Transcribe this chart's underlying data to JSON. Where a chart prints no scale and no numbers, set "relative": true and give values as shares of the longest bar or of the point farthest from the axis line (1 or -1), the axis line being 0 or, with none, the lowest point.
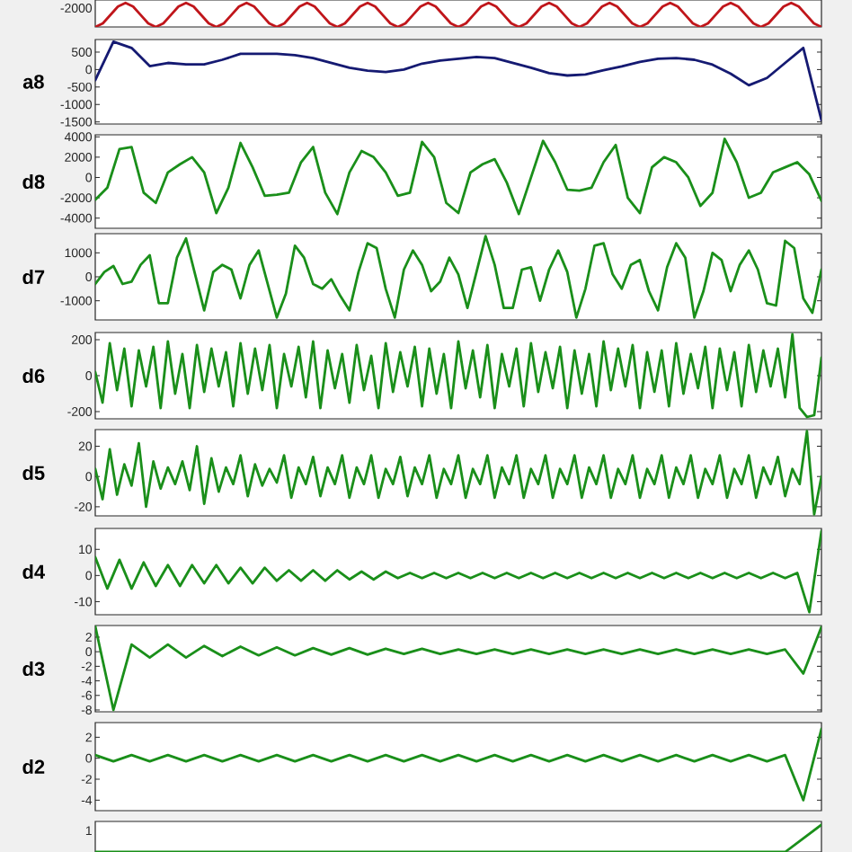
{
  "chart_data": [
    {
      "type": "line",
      "relative": true,
      "tick_labels": "y",
      "color": "#c0161b",
      "annotations": [
        "-2000"
      ],
      "categories": [
        null,
        null,
        null,
        null,
        null,
        null,
        null,
        null,
        null,
        null,
        null,
        null,
        null,
        null,
        null,
        null,
        null,
        null,
        null,
        null,
        null,
        null,
        null,
        null,
        null,
        null,
        null,
        null,
        null,
        null,
        null,
        null,
        null,
        null,
        null,
        null,
        null,
        null,
        null,
        null,
        null,
        null,
        null,
        null,
        null,
        null,
        null,
        null,
        null,
        null,
        null,
        null,
        null,
        null,
        null,
        null,
        null,
        null,
        null,
        null,
        null,
        null,
        null,
        null,
        null,
        null,
        null,
        null,
        null,
        null,
        null,
        null,
        null,
        null,
        null,
        null,
        null,
        null,
        null,
        null,
        null,
        null,
        null,
        null,
        null,
        null,
        null,
        null,
        null,
        null,
        null,
        null,
        null,
        null,
        null,
        null,
        null
      ],
      "values": [
        0,
        0.15,
        0.5,
        0.85,
        1,
        0.85,
        0.5,
        0.15,
        0,
        0.15,
        0.5,
        0.85,
        1,
        0.85,
        0.5,
        0.15,
        0,
        0.15,
        0.5,
        0.85,
        1,
        0.85,
        0.5,
        0.15,
        0,
        0.15,
        0.5,
        0.85,
        1,
        0.85,
        0.5,
        0.15,
        0,
        0.15,
        0.5,
        0.85,
        1,
        0.85,
        0.5,
        0.15,
        0,
        0.15,
        0.5,
        0.85,
        1,
        0.85,
        0.5,
        0.15,
        0,
        0.15,
        0.5,
        0.85,
        1,
        0.85,
        0.5,
        0.15,
        0,
        0.15,
        0.5,
        0.85,
        1,
        0.85,
        0.5,
        0.15,
        0,
        0.15,
        0.5,
        0.85,
        1,
        0.85,
        0.5,
        0.15,
        0,
        0.15,
        0.5,
        0.85,
        1,
        0.85,
        0.5,
        0.15,
        0,
        0.15,
        0.5,
        0.85,
        1,
        0.85,
        0.5,
        0.15,
        0,
        0.15,
        0.5,
        0.85,
        1,
        0.85,
        0.5,
        0.15,
        0
      ]
    },
    {
      "type": "line",
      "tick_labels": "y",
      "ylabel": "a8",
      "color": "#151a72",
      "ylim": [
        -1560,
        860
      ],
      "yticks": [
        -1500,
        -1000,
        -500,
        0,
        500
      ],
      "categories": [
        null,
        null,
        null,
        null,
        null,
        null,
        null,
        null,
        null,
        null,
        null,
        null,
        null,
        null,
        null,
        null,
        null,
        null,
        null,
        null,
        null,
        null,
        null,
        null,
        null,
        null,
        null,
        null,
        null,
        null,
        null,
        null,
        null,
        null,
        null,
        null,
        null,
        null,
        null,
        null,
        null
      ],
      "values": [
        -300,
        800,
        620,
        100,
        190,
        150,
        150,
        280,
        450,
        450,
        450,
        410,
        330,
        190,
        50,
        -30,
        -70,
        0,
        170,
        260,
        310,
        360,
        330,
        190,
        50,
        -100,
        -170,
        -140,
        -20,
        90,
        220,
        310,
        330,
        280,
        140,
        -120,
        -450,
        -240,
        190,
        620,
        -1450
      ]
    },
    {
      "type": "line",
      "tick_labels": "y",
      "ylabel": "d8",
      "color": "#1a8f1a",
      "ylim": [
        -5000,
        4200
      ],
      "yticks": [
        -4000,
        -2000,
        0,
        2000,
        4000
      ],
      "categories": [
        null,
        null,
        null,
        null,
        null,
        null,
        null,
        null,
        null,
        null,
        null,
        null,
        null,
        null,
        null,
        null,
        null,
        null,
        null,
        null,
        null,
        null,
        null,
        null,
        null,
        null,
        null,
        null,
        null,
        null,
        null,
        null,
        null,
        null,
        null,
        null,
        null,
        null,
        null,
        null,
        null,
        null,
        null,
        null,
        null,
        null,
        null,
        null,
        null,
        null,
        null,
        null,
        null,
        null,
        null,
        null,
        null,
        null,
        null,
        null,
        null
      ],
      "values": [
        -2200,
        -1000,
        2800,
        3000,
        -1500,
        -2500,
        500,
        1300,
        2000,
        500,
        -3500,
        -1000,
        3400,
        1000,
        -1800,
        -1700,
        -1500,
        1500,
        3000,
        -1500,
        -3600,
        500,
        2600,
        2000,
        500,
        -1800,
        -1500,
        3500,
        2000,
        -2500,
        -3500,
        500,
        1300,
        1800,
        -500,
        -3600,
        0,
        3600,
        1500,
        -1200,
        -1300,
        -1000,
        1500,
        3200,
        -2000,
        -3500,
        1000,
        2000,
        1500,
        0,
        -2800,
        -1500,
        3800,
        1500,
        -2000,
        -1500,
        500,
        1000,
        1500,
        300,
        -2300
      ]
    },
    {
      "type": "line",
      "tick_labels": "y",
      "ylabel": "d7",
      "color": "#1a8f1a",
      "ylim": [
        -1800,
        1800
      ],
      "yticks": [
        -1000,
        0,
        1000
      ],
      "categories": [
        null,
        null,
        null,
        null,
        null,
        null,
        null,
        null,
        null,
        null,
        null,
        null,
        null,
        null,
        null,
        null,
        null,
        null,
        null,
        null,
        null,
        null,
        null,
        null,
        null,
        null,
        null,
        null,
        null,
        null,
        null,
        null,
        null,
        null,
        null,
        null,
        null,
        null,
        null,
        null,
        null,
        null,
        null,
        null,
        null,
        null,
        null,
        null,
        null,
        null,
        null,
        null,
        null,
        null,
        null,
        null,
        null,
        null,
        null,
        null,
        null,
        null,
        null,
        null,
        null,
        null,
        null,
        null,
        null,
        null,
        null,
        null,
        null,
        null,
        null,
        null,
        null,
        null,
        null,
        null,
        null
      ],
      "values": [
        -300,
        200,
        450,
        -300,
        -200,
        500,
        900,
        -1100,
        -1100,
        800,
        1600,
        100,
        -1400,
        200,
        500,
        300,
        -900,
        500,
        1100,
        -300,
        -1700,
        -700,
        1300,
        800,
        -300,
        -500,
        -100,
        -800,
        -1400,
        200,
        1400,
        1200,
        -500,
        -1700,
        300,
        1100,
        500,
        -600,
        -200,
        800,
        100,
        -1300,
        200,
        1700,
        500,
        -1300,
        -1300,
        300,
        400,
        -1000,
        300,
        1100,
        200,
        -1700,
        -500,
        1300,
        1400,
        100,
        -500,
        500,
        700,
        -600,
        -1400,
        400,
        1400,
        800,
        -1700,
        -600,
        1000,
        700,
        -600,
        500,
        1100,
        300,
        -1100,
        -1200,
        1500,
        1200,
        -900,
        -1500,
        300
      ]
    },
    {
      "type": "line",
      "tick_labels": "y",
      "ylabel": "d6",
      "color": "#1a8f1a",
      "ylim": [
        -240,
        240
      ],
      "yticks": [
        -200,
        0,
        200
      ],
      "categories": [
        null,
        null,
        null,
        null,
        null,
        null,
        null,
        null,
        null,
        null,
        null,
        null,
        null,
        null,
        null,
        null,
        null,
        null,
        null,
        null,
        null,
        null,
        null,
        null,
        null,
        null,
        null,
        null,
        null,
        null,
        null,
        null,
        null,
        null,
        null,
        null,
        null,
        null,
        null,
        null,
        null,
        null,
        null,
        null,
        null,
        null,
        null,
        null,
        null,
        null,
        null,
        null,
        null,
        null,
        null,
        null,
        null,
        null,
        null,
        null,
        null,
        null,
        null,
        null,
        null,
        null,
        null,
        null,
        null,
        null,
        null,
        null,
        null,
        null,
        null,
        null,
        null,
        null,
        null,
        null,
        null,
        null,
        null,
        null,
        null,
        null,
        null,
        null,
        null,
        null,
        null,
        null,
        null,
        null,
        null,
        null,
        null,
        null,
        null,
        null,
        null
      ],
      "values": [
        20,
        -150,
        180,
        -80,
        150,
        -170,
        140,
        -60,
        160,
        -180,
        190,
        -100,
        120,
        -180,
        170,
        -90,
        150,
        -60,
        130,
        -170,
        180,
        -100,
        150,
        -80,
        170,
        -180,
        120,
        -60,
        160,
        -120,
        190,
        -180,
        140,
        -70,
        120,
        -150,
        170,
        -80,
        110,
        -180,
        180,
        -90,
        130,
        -60,
        160,
        -170,
        150,
        -100,
        120,
        -180,
        190,
        -70,
        140,
        -120,
        170,
        -180,
        120,
        -60,
        150,
        -170,
        180,
        -90,
        130,
        -70,
        160,
        -180,
        140,
        -100,
        120,
        -170,
        190,
        -80,
        150,
        -60,
        170,
        -180,
        130,
        -90,
        140,
        -170,
        180,
        -100,
        120,
        -70,
        160,
        -180,
        150,
        -80,
        130,
        -170,
        170,
        -90,
        140,
        -60,
        150,
        -120,
        230,
        -180,
        -230,
        -220,
        100
      ]
    },
    {
      "type": "line",
      "tick_labels": "y",
      "ylabel": "d5",
      "color": "#1a8f1a",
      "ylim": [
        -26,
        31
      ],
      "yticks": [
        -20,
        0,
        20
      ],
      "categories": [
        null,
        null,
        null,
        null,
        null,
        null,
        null,
        null,
        null,
        null,
        null,
        null,
        null,
        null,
        null,
        null,
        null,
        null,
        null,
        null,
        null,
        null,
        null,
        null,
        null,
        null,
        null,
        null,
        null,
        null,
        null,
        null,
        null,
        null,
        null,
        null,
        null,
        null,
        null,
        null,
        null,
        null,
        null,
        null,
        null,
        null,
        null,
        null,
        null,
        null,
        null,
        null,
        null,
        null,
        null,
        null,
        null,
        null,
        null,
        null,
        null,
        null,
        null,
        null,
        null,
        null,
        null,
        null,
        null,
        null,
        null,
        null,
        null,
        null,
        null,
        null,
        null,
        null,
        null,
        null,
        null,
        null,
        null,
        null,
        null,
        null,
        null,
        null,
        null,
        null,
        null,
        null,
        null,
        null,
        null,
        null,
        null,
        null,
        null,
        null,
        null
      ],
      "values": [
        5,
        -15,
        18,
        -12,
        8,
        -6,
        22,
        -20,
        10,
        -8,
        6,
        -5,
        10,
        -9,
        20,
        -18,
        12,
        -10,
        6,
        -5,
        14,
        -13,
        8,
        -6,
        5,
        -4,
        14,
        -14,
        6,
        -5,
        13,
        -13,
        6,
        -5,
        14,
        -14,
        6,
        -5,
        14,
        -14,
        5,
        -5,
        13,
        -13,
        6,
        -5,
        14,
        -14,
        5,
        -5,
        14,
        -14,
        5,
        -5,
        14,
        -14,
        6,
        -5,
        14,
        -14,
        5,
        -5,
        14,
        -14,
        5,
        -5,
        14,
        -14,
        6,
        -5,
        14,
        -14,
        5,
        -5,
        14,
        -14,
        5,
        -5,
        14,
        -14,
        6,
        -5,
        14,
        -14,
        5,
        -5,
        14,
        -14,
        5,
        -5,
        14,
        -14,
        6,
        -5,
        13,
        -13,
        5,
        -5,
        30,
        -25,
        0
      ]
    },
    {
      "type": "line",
      "tick_labels": "y",
      "ylabel": "d4",
      "color": "#1a8f1a",
      "ylim": [
        -15,
        18
      ],
      "yticks": [
        -10,
        0,
        10
      ],
      "categories": [
        null,
        null,
        null,
        null,
        null,
        null,
        null,
        null,
        null,
        null,
        null,
        null,
        null,
        null,
        null,
        null,
        null,
        null,
        null,
        null,
        null,
        null,
        null,
        null,
        null,
        null,
        null,
        null,
        null,
        null,
        null,
        null,
        null,
        null,
        null,
        null,
        null,
        null,
        null,
        null,
        null,
        null,
        null,
        null,
        null,
        null,
        null,
        null,
        null,
        null,
        null,
        null,
        null,
        null,
        null,
        null,
        null,
        null,
        null,
        null,
        null
      ],
      "values": [
        7,
        -5,
        6,
        -5,
        5,
        -4,
        4,
        -4,
        4,
        -3,
        4,
        -3,
        3,
        -3,
        3,
        -2,
        2,
        -2,
        2,
        -2,
        2,
        -1.5,
        1.5,
        -1.5,
        1.5,
        -1,
        1,
        -1,
        1,
        -1,
        1,
        -1,
        1,
        -1,
        1,
        -1,
        1,
        -1,
        1,
        -1,
        1,
        -1,
        1,
        -1,
        1,
        -1,
        1,
        -1,
        1,
        -1,
        1,
        -1,
        1,
        -1,
        1,
        -1,
        1,
        -1,
        1,
        -14,
        17
      ]
    },
    {
      "type": "line",
      "tick_labels": "y",
      "ylabel": "d3",
      "color": "#1a8f1a",
      "ylim": [
        -8.25,
        3.6
      ],
      "yticks": [
        -8,
        -6,
        -4,
        -2,
        0,
        2
      ],
      "categories": [
        null,
        null,
        null,
        null,
        null,
        null,
        null,
        null,
        null,
        null,
        null,
        null,
        null,
        null,
        null,
        null,
        null,
        null,
        null,
        null,
        null,
        null,
        null,
        null,
        null,
        null,
        null,
        null,
        null,
        null,
        null,
        null,
        null,
        null,
        null,
        null,
        null,
        null,
        null,
        null,
        null
      ],
      "values": [
        3.5,
        -8,
        1,
        -0.8,
        1,
        -0.8,
        0.8,
        -0.6,
        0.7,
        -0.5,
        0.6,
        -0.5,
        0.5,
        -0.4,
        0.5,
        -0.4,
        0.4,
        -0.3,
        0.4,
        -0.3,
        0.3,
        -0.3,
        0.3,
        -0.3,
        0.3,
        -0.3,
        0.3,
        -0.3,
        0.3,
        -0.3,
        0.3,
        -0.3,
        0.3,
        -0.3,
        0.3,
        -0.3,
        0.3,
        -0.3,
        0.3,
        -3,
        3.4
      ]
    },
    {
      "type": "line",
      "tick_labels": "y",
      "ylabel": "d2",
      "color": "#1a8f1a",
      "ylim": [
        -5,
        3.4
      ],
      "yticks": [
        -4,
        -2,
        0,
        2
      ],
      "categories": [
        null,
        null,
        null,
        null,
        null,
        null,
        null,
        null,
        null,
        null,
        null,
        null,
        null,
        null,
        null,
        null,
        null,
        null,
        null,
        null,
        null,
        null,
        null,
        null,
        null,
        null,
        null,
        null,
        null,
        null,
        null,
        null,
        null,
        null,
        null,
        null,
        null,
        null,
        null,
        null,
        null
      ],
      "values": [
        0.3,
        -0.3,
        0.3,
        -0.3,
        0.3,
        -0.3,
        0.3,
        -0.3,
        0.3,
        -0.3,
        0.3,
        -0.3,
        0.3,
        -0.3,
        0.3,
        -0.3,
        0.3,
        -0.3,
        0.3,
        -0.3,
        0.3,
        -0.3,
        0.3,
        -0.3,
        0.3,
        -0.3,
        0.3,
        -0.3,
        0.3,
        -0.3,
        0.3,
        -0.3,
        0.3,
        -0.3,
        0.3,
        -0.3,
        0.3,
        -0.3,
        0.3,
        -4,
        2.8
      ]
    },
    {
      "type": "line",
      "relative": true,
      "tick_labels": "y",
      "color": "#1a8f1a",
      "annotations": [
        "1"
      ],
      "categories": [
        null,
        null,
        null,
        null,
        null,
        null,
        null,
        null,
        null,
        null,
        null,
        null,
        null,
        null,
        null,
        null,
        null,
        null,
        null,
        null,
        null
      ],
      "values": [
        0,
        0,
        0,
        0,
        0,
        0,
        0,
        0,
        0,
        0,
        0,
        0,
        0,
        0,
        0,
        0,
        0,
        0,
        0,
        0,
        1
      ]
    }
  ]
}
